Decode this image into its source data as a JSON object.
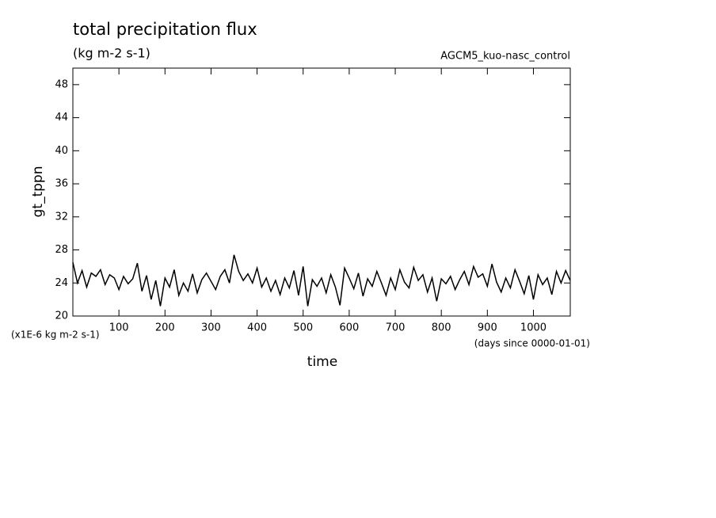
{
  "chart_data": {
    "type": "line",
    "title": "total precipitation flux",
    "subtitle": "(kg m-2 s-1)",
    "run_label": "AGCM5_kuo-nasc_control",
    "y_label": "gt_tppn",
    "y_unit_label": "(x1E-6 kg m-2 s-1)",
    "x_label": "time",
    "x_unit_label": "(days since 0000-01-01)",
    "xlim": [
      0,
      1080
    ],
    "ylim": [
      20,
      50
    ],
    "xticks": [
      100,
      200,
      300,
      400,
      500,
      600,
      700,
      800,
      900,
      1000
    ],
    "yticks": [
      20,
      24,
      28,
      32,
      36,
      40,
      44,
      48
    ],
    "x": [
      0,
      10,
      20,
      30,
      40,
      50,
      60,
      70,
      80,
      90,
      100,
      110,
      120,
      130,
      140,
      150,
      160,
      170,
      180,
      190,
      200,
      210,
      220,
      230,
      240,
      250,
      260,
      270,
      280,
      290,
      300,
      310,
      320,
      330,
      340,
      350,
      360,
      370,
      380,
      390,
      400,
      410,
      420,
      430,
      440,
      450,
      460,
      470,
      480,
      490,
      500,
      510,
      520,
      530,
      540,
      550,
      560,
      570,
      580,
      590,
      600,
      610,
      620,
      630,
      640,
      650,
      660,
      670,
      680,
      690,
      700,
      710,
      720,
      730,
      740,
      750,
      760,
      770,
      780,
      790,
      800,
      810,
      820,
      830,
      840,
      850,
      860,
      870,
      880,
      890,
      900,
      910,
      920,
      930,
      940,
      950,
      960,
      970,
      980,
      990,
      1000,
      1010,
      1020,
      1030,
      1040,
      1050,
      1060,
      1070,
      1080
    ],
    "series": [
      {
        "color": "#000000",
        "values": [
          26.5,
          24.0,
          25.5,
          23.5,
          25.2,
          24.8,
          25.6,
          23.8,
          25.0,
          24.6,
          23.2,
          24.8,
          23.9,
          24.5,
          26.4,
          23.0,
          24.9,
          22.0,
          24.3,
          21.2,
          24.6,
          23.5,
          25.6,
          22.5,
          24.0,
          23.0,
          25.1,
          22.8,
          24.4,
          25.2,
          24.2,
          23.2,
          24.8,
          25.6,
          24.0,
          27.4,
          25.4,
          24.3,
          25.1,
          24.0,
          25.8,
          23.5,
          24.6,
          23.0,
          24.3,
          22.6,
          24.6,
          23.4,
          25.5,
          22.5,
          26.0,
          21.2,
          24.4,
          23.6,
          24.6,
          22.8,
          25.0,
          23.5,
          21.3,
          25.8,
          24.6,
          23.3,
          25.2,
          22.4,
          24.5,
          23.6,
          25.4,
          24.0,
          22.5,
          24.6,
          23.2,
          25.6,
          24.1,
          23.4,
          25.9,
          24.3,
          25.0,
          22.9,
          24.6,
          21.8,
          24.5,
          23.9,
          24.8,
          23.2,
          24.4,
          25.4,
          23.8,
          26.0,
          24.7,
          25.1,
          23.6,
          26.3,
          24.1,
          22.9,
          24.6,
          23.4,
          25.6,
          24.2,
          22.7,
          24.9,
          22.0,
          25.0,
          23.8,
          24.6,
          22.6,
          25.4,
          24.0,
          25.5,
          24.3
        ]
      }
    ]
  }
}
